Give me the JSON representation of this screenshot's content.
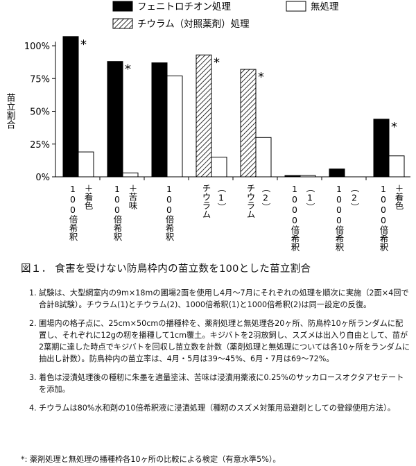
{
  "chart_data": {
    "type": "bar",
    "ylabel": "苗立割合",
    "ylim": [
      0,
      100
    ],
    "yticks": [
      "0%",
      "25%",
      "50%",
      "75%",
      "100%"
    ],
    "ytick_values": [
      0,
      25,
      50,
      75,
      100
    ],
    "grid": false,
    "legend_position": "top",
    "categories": [
      [
        "100倍希釈",
        "＋着色"
      ],
      [
        "100倍希釈",
        "＋苦味"
      ],
      [
        "100倍希釈"
      ],
      [
        "チウラム",
        "（1）"
      ],
      [
        "チウラム",
        "（2）"
      ],
      [
        "1000倍希釈",
        "（1）"
      ],
      [
        "1000倍希釈",
        "（2）"
      ],
      [
        "1000倍希釈",
        "＋着色"
      ]
    ],
    "series": [
      {
        "name": "フェニトロチオン処理",
        "style": "solid-black",
        "values": [
          107,
          88,
          87,
          null,
          null,
          1,
          6,
          44
        ]
      },
      {
        "name": "チウラム（対照薬剤）処理",
        "style": "hatched",
        "values": [
          null,
          null,
          null,
          93,
          82,
          null,
          null,
          null
        ]
      },
      {
        "name": "無処理",
        "style": "white",
        "values": [
          19,
          3,
          77,
          15,
          30,
          1,
          null,
          16
        ]
      }
    ],
    "significance": [
      true,
      true,
      false,
      true,
      true,
      false,
      false,
      true
    ],
    "significance_mark": "*"
  },
  "caption": "図１． 食害を受けない防鳥枠内の苗立数を100とした苗立割合",
  "notes": [
    {
      "num": "1.",
      "text": "試験は、大型網室内の9m×18mの圃場2面を使用し4月～7月にそれぞれの処理を順次に実施（2面×4回で合計8試験）。チウラム(1)とチウラム(2)、1000倍希釈(1)と1000倍希釈(2)は同一設定の反復。"
    },
    {
      "num": "2.",
      "text": "圃場内の格子点に、25cm×50cmの播種枠を、薬剤処理と無処理各20ヶ所、防鳥枠10ヶ所ランダムに配置し、それぞれに12gの籾を播種して1cm覆土。キジバトを2羽放飼し、スズメは出入り自由として、苗が2葉期に達した時点でキジバトを回収し苗立数を計数（薬剤処理と無処理については各10ヶ所をランダムに抽出し計数）。防鳥枠内の苗立率は、4月・5月は39～45%、6月・7月は69～72%。"
    },
    {
      "num": "3.",
      "text": "着色は浸漬処理後の種籾に朱墨を適量塗沫、苦味は浸漬用薬液に0.25%のサッカロースオクタアセテートを添加。"
    },
    {
      "num": "4.",
      "text": "チウラムは80%水和剤の10倍希釈液に浸漬処理（種籾のスズメ対策用忌避剤としての登録使用方法）。"
    }
  ],
  "footnote": "*: 薬剤処理と無処理の播種枠各10ヶ所の比較による検定（有意水準5%）。"
}
